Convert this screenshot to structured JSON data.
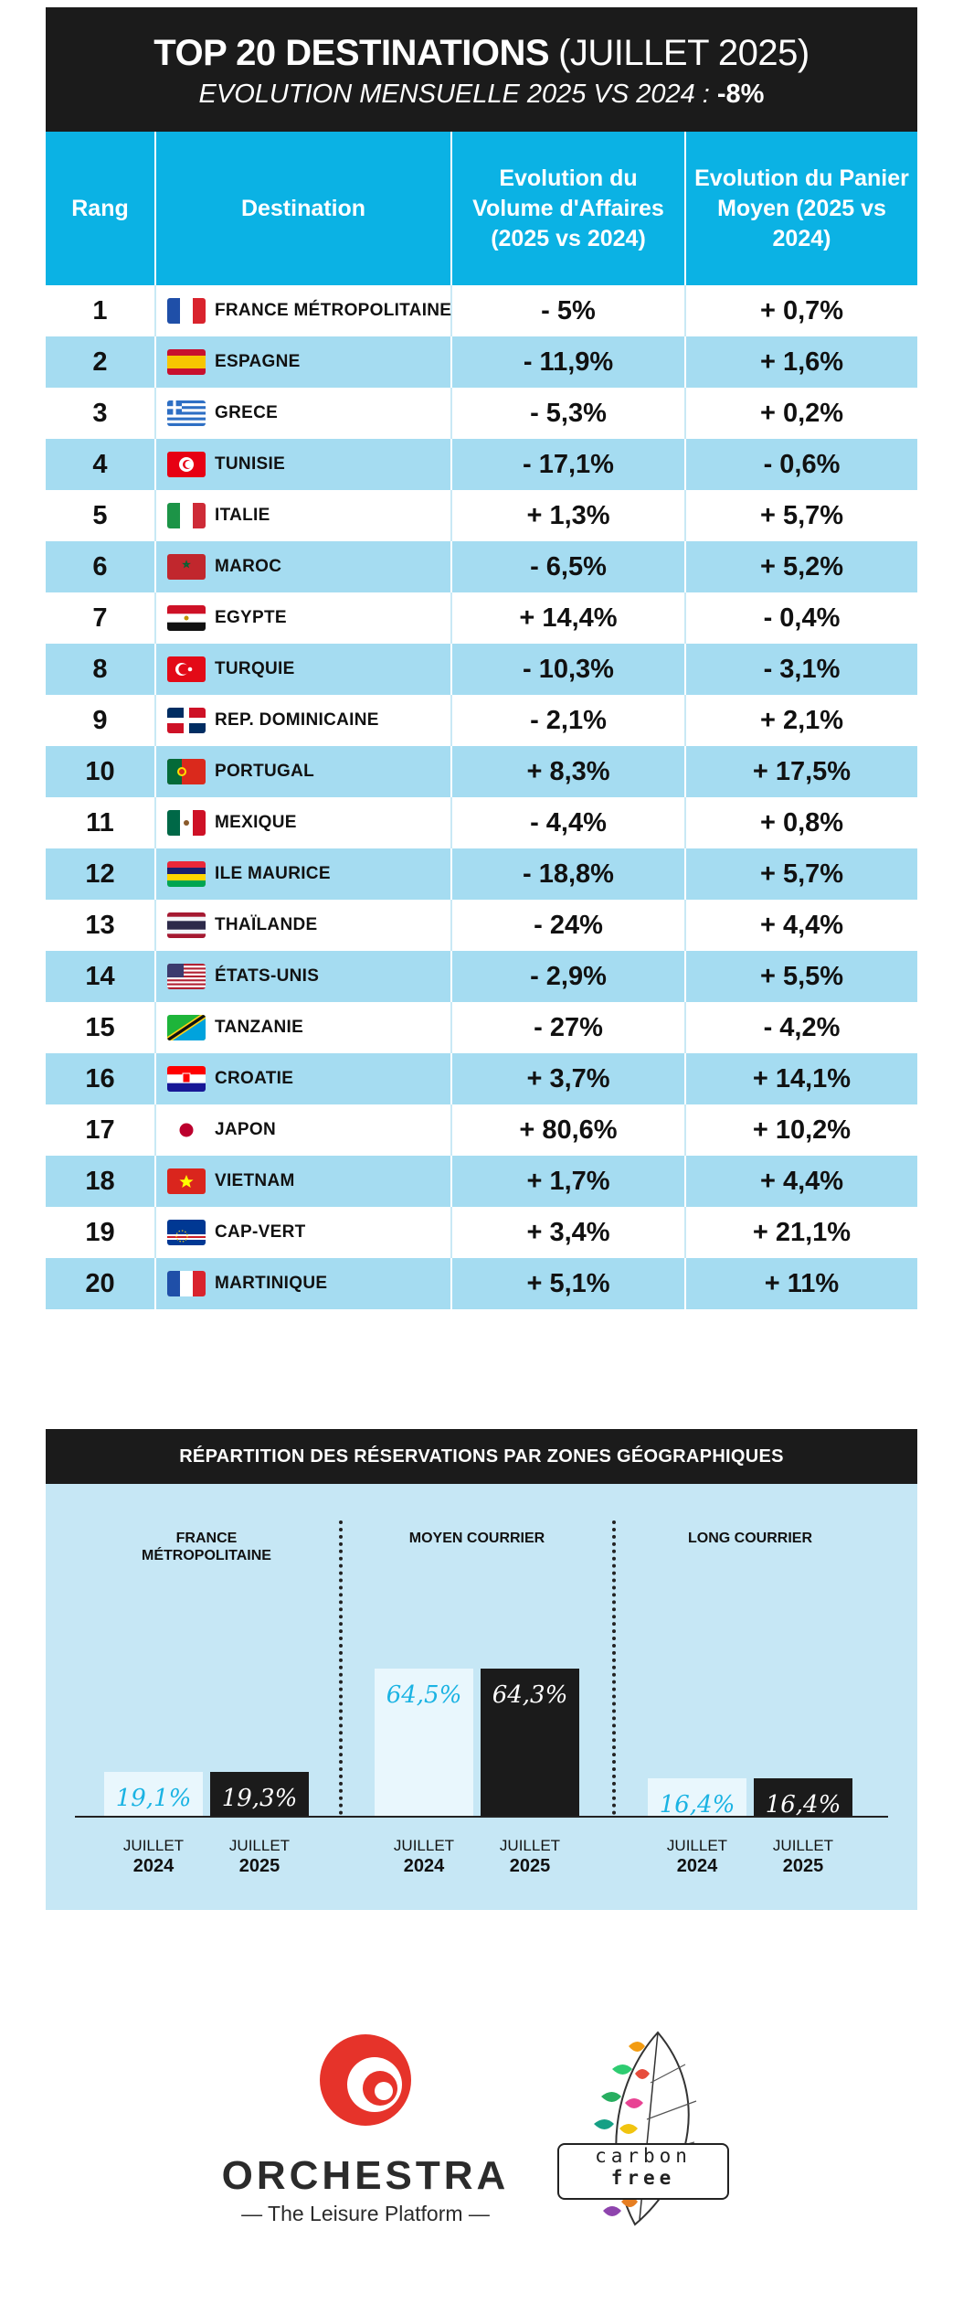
{
  "header": {
    "title_bold": "TOP 20 DESTINATIONS",
    "title_light": "(JUILLET 2025)",
    "subtitle": "EVOLUTION MENSUELLE 2025 VS 2024 :",
    "subtitle_value": "-8%"
  },
  "table": {
    "columns": [
      "Rang",
      "Destination",
      "Evolution du Volume d'Affaires (2025 vs 2024)",
      "Evolution du Panier Moyen (2025 vs 2024)"
    ],
    "rows": [
      {
        "rank": "1",
        "flag": "flag-france",
        "destination": "FRANCE MÉTROPOLITAINE",
        "volume": "- 5%",
        "panier": "+ 0,7%"
      },
      {
        "rank": "2",
        "flag": "flag-spain",
        "destination": "ESPAGNE",
        "volume": "- 11,9%",
        "panier": "+ 1,6%"
      },
      {
        "rank": "3",
        "flag": "flag-greece",
        "destination": "GRECE",
        "volume": "- 5,3%",
        "panier": "+ 0,2%"
      },
      {
        "rank": "4",
        "flag": "flag-tunisia",
        "destination": "TUNISIE",
        "volume": "- 17,1%",
        "panier": "- 0,6%"
      },
      {
        "rank": "5",
        "flag": "flag-italy",
        "destination": "ITALIE",
        "volume": "+ 1,3%",
        "panier": "+ 5,7%"
      },
      {
        "rank": "6",
        "flag": "flag-morocco",
        "destination": "MAROC",
        "volume": "- 6,5%",
        "panier": "+ 5,2%"
      },
      {
        "rank": "7",
        "flag": "flag-egypt",
        "destination": "EGYPTE",
        "volume": "+ 14,4%",
        "panier": "- 0,4%"
      },
      {
        "rank": "8",
        "flag": "flag-turkey",
        "destination": "TURQUIE",
        "volume": "- 10,3%",
        "panier": "- 3,1%"
      },
      {
        "rank": "9",
        "flag": "flag-dominican-republic",
        "destination": "REP. DOMINICAINE",
        "volume": "- 2,1%",
        "panier": "+ 2,1%"
      },
      {
        "rank": "10",
        "flag": "flag-portugal",
        "destination": "PORTUGAL",
        "volume": "+ 8,3%",
        "panier": "+ 17,5%"
      },
      {
        "rank": "11",
        "flag": "flag-mexico",
        "destination": "MEXIQUE",
        "volume": "- 4,4%",
        "panier": "+ 0,8%"
      },
      {
        "rank": "12",
        "flag": "flag-mauritius",
        "destination": "ILE MAURICE",
        "volume": "- 18,8%",
        "panier": "+ 5,7%"
      },
      {
        "rank": "13",
        "flag": "flag-thailand",
        "destination": "THAÏLANDE",
        "volume": "- 24%",
        "panier": "+ 4,4%"
      },
      {
        "rank": "14",
        "flag": "flag-usa",
        "destination": "ÉTATS-UNIS",
        "volume": "- 2,9%",
        "panier": "+ 5,5%"
      },
      {
        "rank": "15",
        "flag": "flag-tanzania",
        "destination": "TANZANIE",
        "volume": "- 27%",
        "panier": "- 4,2%"
      },
      {
        "rank": "16",
        "flag": "flag-croatia",
        "destination": "CROATIE",
        "volume": "+ 3,7%",
        "panier": "+ 14,1%"
      },
      {
        "rank": "17",
        "flag": "flag-japan",
        "destination": "JAPON",
        "volume": "+ 80,6%",
        "panier": "+ 10,2%"
      },
      {
        "rank": "18",
        "flag": "flag-vietnam",
        "destination": "VIETNAM",
        "volume": "+ 1,7%",
        "panier": "+ 4,4%"
      },
      {
        "rank": "19",
        "flag": "flag-cape-verde",
        "destination": "CAP-VERT",
        "volume": "+ 3,4%",
        "panier": "+ 21,1%"
      },
      {
        "rank": "20",
        "flag": "flag-martinique",
        "destination": "MARTINIQUE",
        "volume": "+ 5,1%",
        "panier": "+ 11%"
      }
    ]
  },
  "zones": {
    "title": "RÉPARTITION DES RÉSERVATIONS PAR ZONES GÉOGRAPHIQUES"
  },
  "chart_data": {
    "type": "bar",
    "title": "RÉPARTITION DES RÉSERVATIONS PAR ZONES GÉOGRAPHIQUES",
    "categories": [
      "FRANCE MÉTROPOLITAINE",
      "MOYEN COURRIER",
      "LONG COURRIER"
    ],
    "series": [
      {
        "name": "JUILLET 2024",
        "line1": "JUILLET",
        "line2": "2024",
        "values": [
          19.1,
          64.5,
          16.4
        ],
        "labels": [
          "19,1%",
          "64,5%",
          "16,4%"
        ],
        "color": "#e9f7fd",
        "text_color": "#1ab3e3"
      },
      {
        "name": "JUILLET 2025",
        "line1": "JUILLET",
        "line2": "2025",
        "values": [
          19.3,
          64.3,
          16.4
        ],
        "labels": [
          "19,3%",
          "64,3%",
          "16,4%"
        ],
        "color": "#1b1b1b",
        "text_color": "#ffffff"
      }
    ],
    "ylim": [
      0,
      100
    ],
    "xlabel": "",
    "ylabel": ""
  },
  "colors": {
    "header_bg": "#1b1b1b",
    "table_header_bg": "#0bb2e4",
    "row_alt_bg": "#a5dcf1",
    "zone_bg": "#c6e7f5",
    "orchestra_red": "#e6332a"
  },
  "logos": {
    "orchestra_name": "ORCHESTRA",
    "orchestra_tagline": "— The Leisure Platform —",
    "carbon_line1": "carbon",
    "carbon_line2": "free"
  }
}
